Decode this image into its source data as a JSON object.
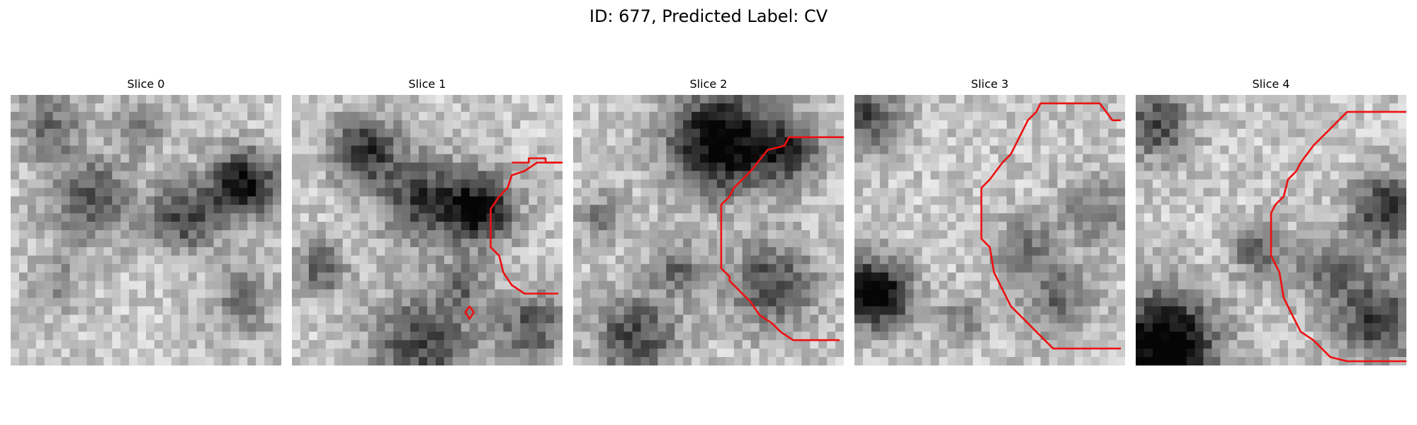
{
  "figure": {
    "title": "ID: 677, Predicted Label: CV"
  },
  "panels": [
    {
      "label": "Slice 0"
    },
    {
      "label": "Slice 1"
    },
    {
      "label": "Slice 2"
    },
    {
      "label": "Slice 3"
    },
    {
      "label": "Slice 4"
    }
  ],
  "style": {
    "contour_color": "#ee1111",
    "colormap": "grayscale"
  }
}
